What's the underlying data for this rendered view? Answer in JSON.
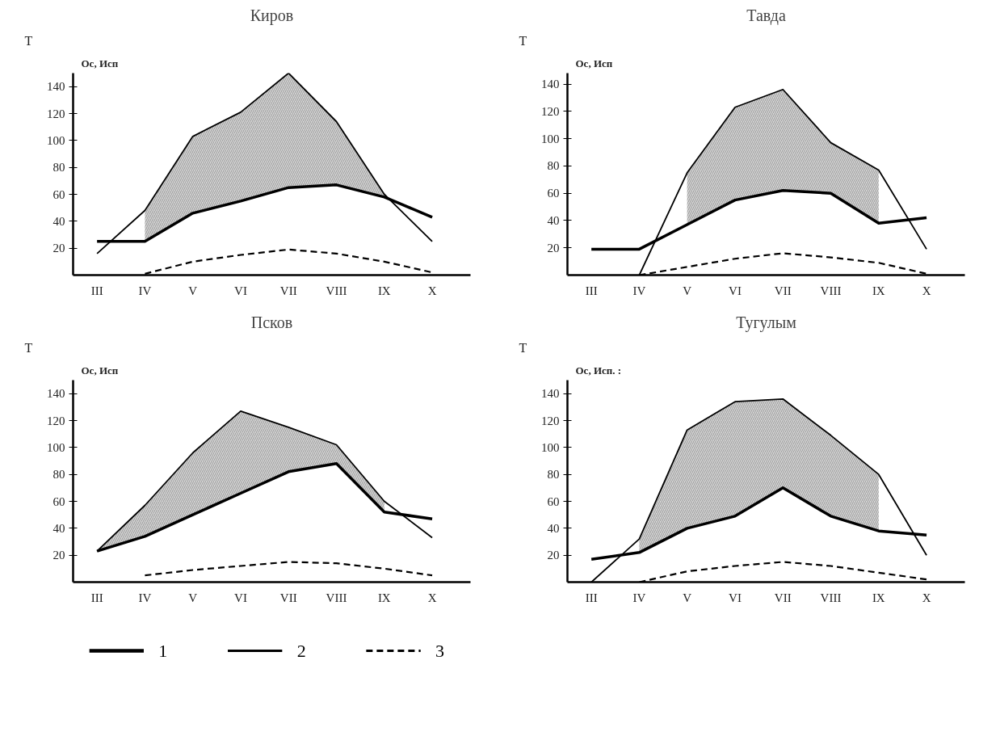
{
  "chart_data": [
    {
      "type": "line",
      "title": "Киров",
      "ylabel": "Ос, Исп",
      "annotations": [
        "Т"
      ],
      "categories": [
        "III",
        "IV",
        "V",
        "VI",
        "VII",
        "VIII",
        "IX",
        "X"
      ],
      "ylim": [
        0,
        150
      ],
      "yticks": [
        20,
        40,
        60,
        80,
        100,
        120,
        140
      ],
      "grid": false,
      "legend": "bottom",
      "series": [
        {
          "name": "1",
          "color": "#000000",
          "line_style": "solid",
          "values": [
            25,
            25,
            46,
            55,
            65,
            67,
            58,
            43
          ]
        },
        {
          "name": "2",
          "color": "#000000",
          "line_style": "solid",
          "values": [
            16,
            48,
            103,
            121,
            150,
            114,
            60,
            25
          ],
          "lower": [
            null,
            25,
            46,
            55,
            65,
            67,
            58,
            null
          ],
          "upper": [
            null,
            48,
            103,
            121,
            150,
            114,
            60,
            null
          ]
        },
        {
          "name": "3",
          "color": "#000000",
          "line_style": "dashed",
          "values": [
            null,
            1,
            10,
            15,
            19,
            16,
            10,
            2
          ]
        }
      ]
    },
    {
      "type": "line",
      "title": "Тавда",
      "ylabel": "Ос, Исп",
      "annotations": [
        "Т"
      ],
      "categories": [
        "III",
        "IV",
        "V",
        "VI",
        "VII",
        "VIII",
        "IX",
        "X"
      ],
      "ylim": [
        0,
        148
      ],
      "yticks": [
        20,
        40,
        60,
        80,
        100,
        120,
        140
      ],
      "grid": false,
      "series": [
        {
          "color": "#000000",
          "line_style": "solid",
          "values": [
            19,
            19,
            37,
            55,
            62,
            60,
            38,
            42
          ]
        },
        {
          "color": "#000000",
          "line_style": "solid",
          "values": [
            null,
            0,
            75,
            123,
            136,
            97,
            77,
            19
          ],
          "lower": [
            null,
            null,
            37,
            55,
            62,
            60,
            38,
            null
          ],
          "upper": [
            null,
            null,
            75,
            123,
            136,
            97,
            77,
            null
          ]
        },
        {
          "color": "#000000",
          "line_style": "dashed",
          "values": [
            null,
            0,
            6,
            12,
            16,
            13,
            9,
            1
          ]
        }
      ]
    },
    {
      "type": "line",
      "title": "Псков",
      "ylabel": "Ос, Исп",
      "annotations": [
        "Т"
      ],
      "categories": [
        "III",
        "IV",
        "V",
        "VI",
        "VII",
        "VIII",
        "IX",
        "X"
      ],
      "ylim": [
        0,
        150
      ],
      "yticks": [
        20,
        40,
        60,
        80,
        100,
        120,
        140
      ],
      "grid": false,
      "series": [
        {
          "color": "#000000",
          "line_style": "solid",
          "values": [
            23,
            34,
            50,
            66,
            82,
            88,
            52,
            47
          ]
        },
        {
          "color": "#000000",
          "line_style": "solid",
          "values": [
            23,
            57,
            96,
            127,
            115,
            102,
            60,
            33
          ],
          "lower": [
            23,
            34,
            50,
            66,
            82,
            88,
            52,
            null
          ],
          "upper": [
            23,
            57,
            96,
            127,
            115,
            102,
            60,
            null
          ]
        },
        {
          "color": "#000000",
          "line_style": "dashed",
          "values": [
            null,
            5,
            9,
            12,
            15,
            14,
            10,
            5
          ]
        }
      ]
    },
    {
      "type": "line",
      "title": "Тугулым",
      "ylabel": "Ос, Исп. :",
      "annotations": [
        "Т"
      ],
      "categories": [
        "III",
        "IV",
        "V",
        "VI",
        "VII",
        "VIII",
        "IX",
        "X"
      ],
      "ylim": [
        0,
        150
      ],
      "yticks": [
        20,
        40,
        60,
        80,
        100,
        120,
        140
      ],
      "grid": false,
      "series": [
        {
          "color": "#000000",
          "line_style": "solid",
          "values": [
            17,
            22,
            40,
            49,
            70,
            49,
            38,
            35
          ]
        },
        {
          "color": "#000000",
          "line_style": "solid",
          "values": [
            0,
            32,
            113,
            134,
            136,
            109,
            80,
            20
          ],
          "lower": [
            null,
            22,
            40,
            49,
            70,
            49,
            38,
            null
          ],
          "upper": [
            null,
            32,
            113,
            134,
            136,
            109,
            80,
            null
          ]
        },
        {
          "color": "#000000",
          "line_style": "dashed",
          "values": [
            null,
            0,
            8,
            12,
            15,
            12,
            7,
            2
          ]
        }
      ]
    }
  ]
}
